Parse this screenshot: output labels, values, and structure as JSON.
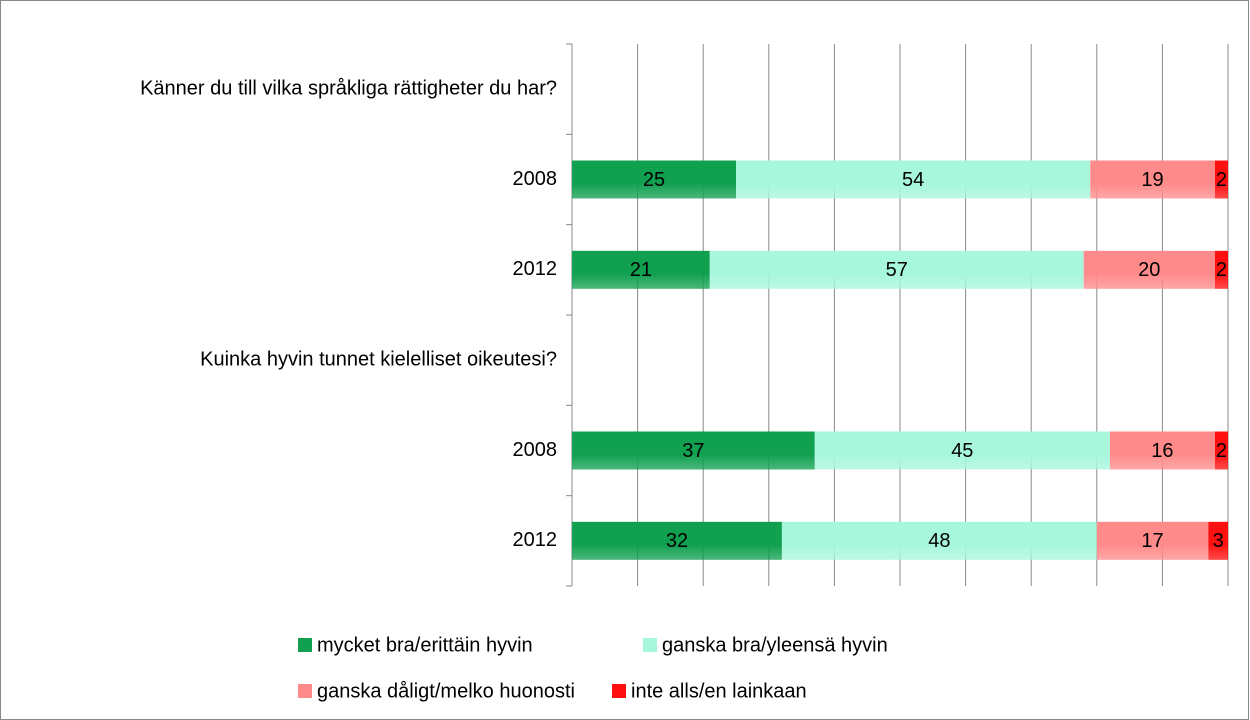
{
  "chart_data": {
    "type": "stacked_barh",
    "categories": [
      "Känner du till vilka språkliga rättigheter du har?",
      "2008",
      "2012",
      "Kuinka hyvin tunnet kielelliset oikeutesi?",
      "2008",
      "2012"
    ],
    "series": [
      {
        "name": "mycket bra/erittäin hyvin",
        "color": "#10a050",
        "values": [
          null,
          25,
          21,
          null,
          37,
          32
        ]
      },
      {
        "name": "ganska bra/yleensä hyvin",
        "color": "#a6f7dc",
        "values": [
          null,
          54,
          57,
          null,
          45,
          48
        ]
      },
      {
        "name": "ganska dåligt/melko huonosti",
        "color": "#ff8a8a",
        "values": [
          null,
          19,
          20,
          null,
          16,
          17
        ]
      },
      {
        "name": "inte alls/en lainkaan",
        "color": "#ff1010",
        "values": [
          null,
          2,
          2,
          null,
          2,
          3
        ]
      }
    ],
    "xlim": [
      0,
      100
    ],
    "xticks": [
      0,
      10,
      20,
      30,
      40,
      50,
      60,
      70,
      80,
      90,
      100
    ],
    "grid": true
  }
}
